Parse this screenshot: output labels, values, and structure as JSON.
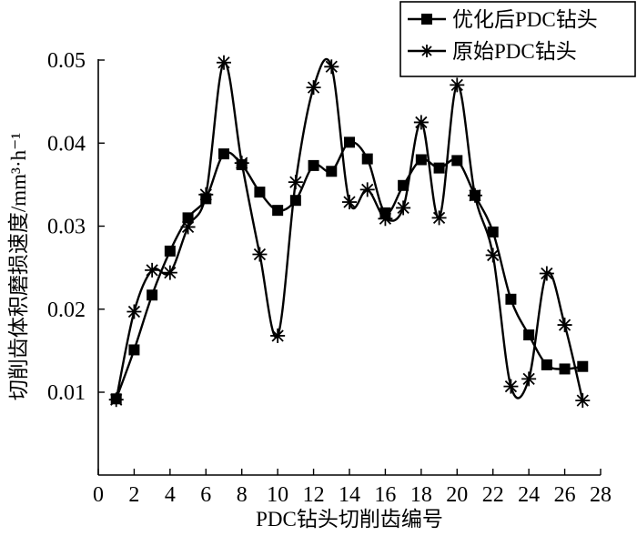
{
  "chart_data": {
    "type": "line",
    "title": "",
    "xlabel": "PDC钻头切削齿编号",
    "ylabel": "切削齿体积磨损速度/mm³·h⁻¹",
    "xlim": [
      0,
      28
    ],
    "ylim": [
      0.0,
      0.05
    ],
    "x_ticks": [
      "0",
      "2",
      "4",
      "6",
      "8",
      "10",
      "12",
      "14",
      "16",
      "18",
      "20",
      "22",
      "24",
      "26",
      "28"
    ],
    "y_ticks": [
      "0.01",
      "0.02",
      "0.03",
      "0.04",
      "0.05"
    ],
    "legend_position": "top-right",
    "x": [
      1,
      2,
      3,
      4,
      5,
      6,
      7,
      8,
      9,
      10,
      11,
      12,
      13,
      14,
      15,
      16,
      17,
      18,
      19,
      20,
      21,
      22,
      23,
      24,
      25,
      26,
      27
    ],
    "series": [
      {
        "name": "优化后PDC钻头",
        "marker": "square",
        "values": [
          0.0092,
          0.0151,
          0.0217,
          0.027,
          0.031,
          0.0333,
          0.0387,
          0.0374,
          0.0341,
          0.0319,
          0.0331,
          0.0373,
          0.0366,
          0.0401,
          0.0381,
          0.0316,
          0.0349,
          0.038,
          0.037,
          0.0379,
          0.0337,
          0.0293,
          0.0212,
          0.0169,
          0.0133,
          0.0128,
          0.0131
        ]
      },
      {
        "name": "原始PDC钻头",
        "marker": "star",
        "values": [
          0.0091,
          0.0197,
          0.0247,
          0.0244,
          0.0299,
          0.0338,
          0.0497,
          0.0376,
          0.0266,
          0.0168,
          0.0353,
          0.0467,
          0.0492,
          0.0329,
          0.0344,
          0.0309,
          0.0322,
          0.0425,
          0.031,
          0.047,
          0.0337,
          0.0265,
          0.0107,
          0.0116,
          0.0243,
          0.0181,
          0.009
        ]
      }
    ]
  }
}
